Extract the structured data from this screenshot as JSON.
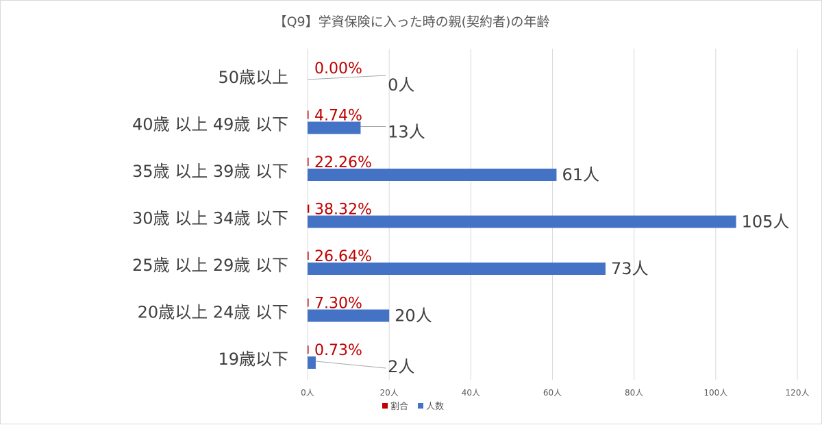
{
  "chart_data": {
    "type": "bar",
    "orientation": "horizontal",
    "title": "【Q9】学資保険に入った時の親(契約者)の年齢",
    "categories": [
      "50歳以上",
      "40歳 以上 49歳 以下",
      "35歳 以上 39歳 以下",
      "30歳 以上 34歳 以下",
      "25歳 以上 29歳 以下",
      "20歳以上 24歳 以下",
      "19歳以下"
    ],
    "series": [
      {
        "name": "割合",
        "color": "#c00000",
        "values": [
          0.0,
          4.74,
          22.26,
          38.32,
          26.64,
          7.3,
          0.73
        ],
        "labels": [
          "0.00%",
          "4.74%",
          "22.26%",
          "38.32%",
          "26.64%",
          "7.30%",
          "0.73%"
        ]
      },
      {
        "name": "人数",
        "color": "#4472c4",
        "values": [
          0,
          13,
          61,
          105,
          73,
          20,
          2
        ],
        "labels": [
          "0人",
          "13人",
          "61人",
          "105人",
          "73人",
          "20人",
          "2人"
        ]
      }
    ],
    "xlim": [
      0,
      120
    ],
    "x_ticks": [
      "0人",
      "20人",
      "40人",
      "60人",
      "80人",
      "100人",
      "120人"
    ],
    "x_tick_values": [
      0,
      20,
      40,
      60,
      80,
      100,
      120
    ],
    "grid": "vertical",
    "legend": "bottom"
  }
}
